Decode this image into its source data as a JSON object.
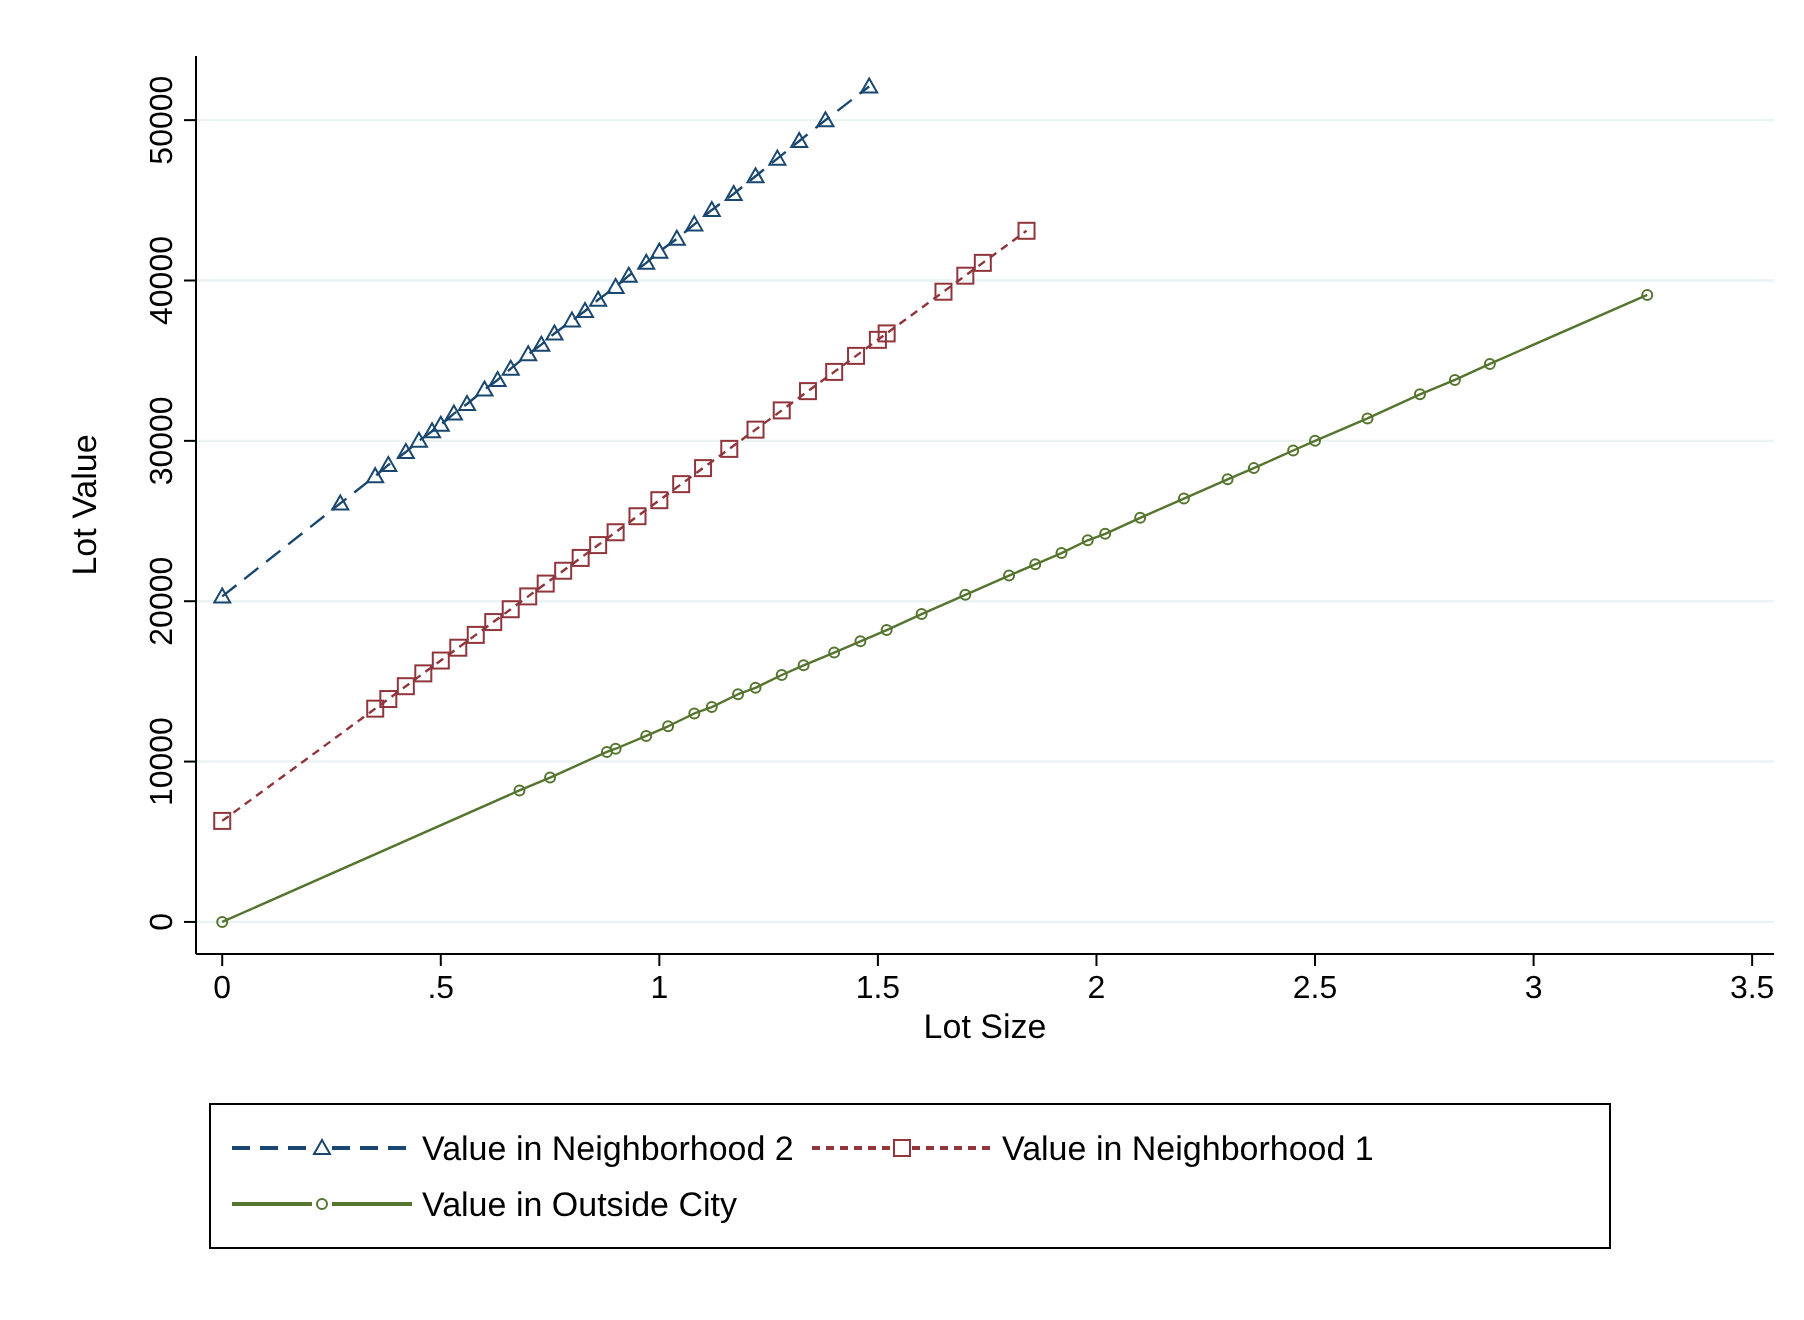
{
  "chart_data": {
    "type": "line",
    "xlabel": "Lot Size",
    "ylabel": "Lot Value",
    "xlim": [
      -0.06,
      3.55
    ],
    "ylim": [
      -2000,
      54000
    ],
    "xticks": [
      {
        "value": 0,
        "label": "0"
      },
      {
        "value": 0.5,
        "label": ".5"
      },
      1,
      1.5,
      2,
      2.5,
      3,
      3.5
    ],
    "yticks": [
      0,
      10000,
      20000,
      30000,
      40000,
      50000
    ],
    "grid": "y",
    "legend": "bottom",
    "series": [
      {
        "name": "Value in Neighborhood 2",
        "color": "#1a476f",
        "marker": "triangle",
        "line_style": "dashed",
        "x": [
          0,
          0.27,
          0.35,
          0.38,
          0.42,
          0.45,
          0.48,
          0.5,
          0.53,
          0.56,
          0.6,
          0.63,
          0.66,
          0.7,
          0.73,
          0.76,
          0.8,
          0.83,
          0.86,
          0.9,
          0.93,
          0.97,
          1.0,
          1.04,
          1.08,
          1.12,
          1.17,
          1.22,
          1.27,
          1.32,
          1.38,
          1.48
        ],
        "values": [
          20300,
          26100,
          27800,
          28500,
          29300,
          30000,
          30600,
          31000,
          31700,
          32300,
          33200,
          33800,
          34500,
          35400,
          36000,
          36700,
          37500,
          38100,
          38800,
          39600,
          40300,
          41100,
          41800,
          42600,
          43500,
          44400,
          45400,
          46500,
          47600,
          48700,
          50000,
          52100
        ]
      },
      {
        "name": "Value in Neighborhood 1",
        "color": "#90353b",
        "marker": "square",
        "line_style": "dotted",
        "x": [
          0,
          0.35,
          0.38,
          0.42,
          0.46,
          0.5,
          0.54,
          0.58,
          0.62,
          0.66,
          0.7,
          0.74,
          0.78,
          0.82,
          0.86,
          0.9,
          0.95,
          1.0,
          1.05,
          1.1,
          1.16,
          1.22,
          1.28,
          1.34,
          1.4,
          1.45,
          1.5,
          1.52,
          1.65,
          1.7,
          1.74,
          1.84
        ],
        "values": [
          6300,
          13300,
          13900,
          14700,
          15500,
          16300,
          17100,
          17900,
          18700,
          19500,
          20300,
          21100,
          21900,
          22700,
          23500,
          24300,
          25300,
          26300,
          27300,
          28300,
          29500,
          30700,
          31900,
          33100,
          34300,
          35300,
          36300,
          36700,
          39300,
          40300,
          41100,
          43100
        ]
      },
      {
        "name": "Value in Outside City",
        "color": "#55752f",
        "marker": "circle",
        "line_style": "solid",
        "x": [
          0,
          0.68,
          0.75,
          0.88,
          0.9,
          0.97,
          1.02,
          1.08,
          1.12,
          1.18,
          1.22,
          1.28,
          1.33,
          1.4,
          1.46,
          1.52,
          1.6,
          1.7,
          1.8,
          1.86,
          1.92,
          1.98,
          2.02,
          2.1,
          2.2,
          2.3,
          2.36,
          2.45,
          2.5,
          2.62,
          2.74,
          2.82,
          2.9,
          3.26
        ],
        "values": [
          0,
          8200,
          9000,
          10600,
          10800,
          11600,
          12200,
          13000,
          13400,
          14200,
          14600,
          15400,
          16000,
          16800,
          17500,
          18200,
          19200,
          20400,
          21600,
          22300,
          23000,
          23800,
          24200,
          25200,
          26400,
          27600,
          28300,
          29400,
          30000,
          31400,
          32900,
          33800,
          34800,
          39100
        ]
      }
    ]
  }
}
